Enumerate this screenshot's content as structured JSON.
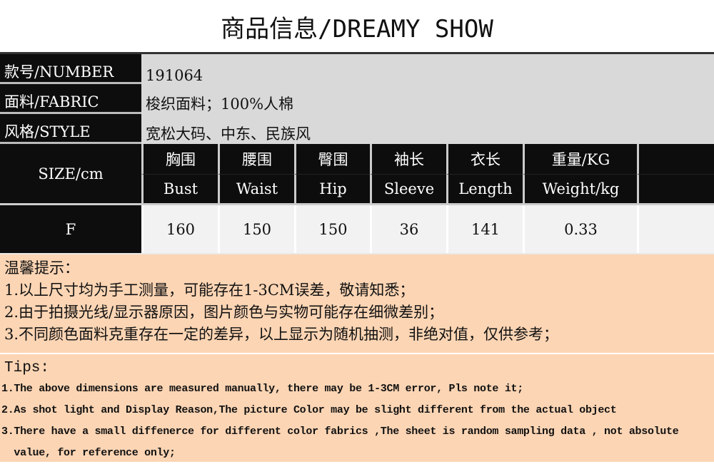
{
  "title": "商品信息/DREAMY SHOW",
  "info": [
    {
      "label": "款号/NUMBER",
      "value": "191064"
    },
    {
      "label": "面料/FABRIC",
      "value": "梭织面料；100%人棉"
    },
    {
      "label": "风格/STYLE",
      "value": "宽松大码、中东、民族风"
    }
  ],
  "size_label": "SIZE/cm",
  "columns": [
    {
      "cn": "胸围",
      "en": "Bust"
    },
    {
      "cn": "腰围",
      "en": "Waist"
    },
    {
      "cn": "臀围",
      "en": "Hip"
    },
    {
      "cn": "袖长",
      "en": "Sleeve"
    },
    {
      "cn": "衣长",
      "en": "Length"
    },
    {
      "cn": "重量/KG",
      "en": "Weight/kg"
    }
  ],
  "rows": [
    {
      "size": "F",
      "values": [
        "160",
        "150",
        "150",
        "36",
        "141",
        "0.33"
      ]
    }
  ],
  "notes_cn": {
    "title": "温馨提示：",
    "items": [
      "1.以上尺寸均为手工测量，可能存在1-3CM误差，敬请知悉；",
      "2.由于拍摄光线/显示器原因，图片颜色与实物可能存在细微差别；",
      "3.不同颜色面料克重存在一定的差异，以上显示为随机抽测，非绝对值，仅供参考；"
    ]
  },
  "notes_en": {
    "title": "Tips:",
    "items": [
      "1.The above dimensions are measured manually, there may be 1-3CM error, Pls note it;",
      "2.As shot light and Display Reason,The picture Color may be slight  different from the actual object",
      "3.There have a small diffenerce for different color fabrics ,The sheet is random sampling data , not absolute",
      "  value, for reference only;"
    ]
  },
  "colors": {
    "header_bg": "#0d0d0d",
    "info_bg": "#d9d9d9",
    "notes_bg": "#fcd5b4"
  }
}
